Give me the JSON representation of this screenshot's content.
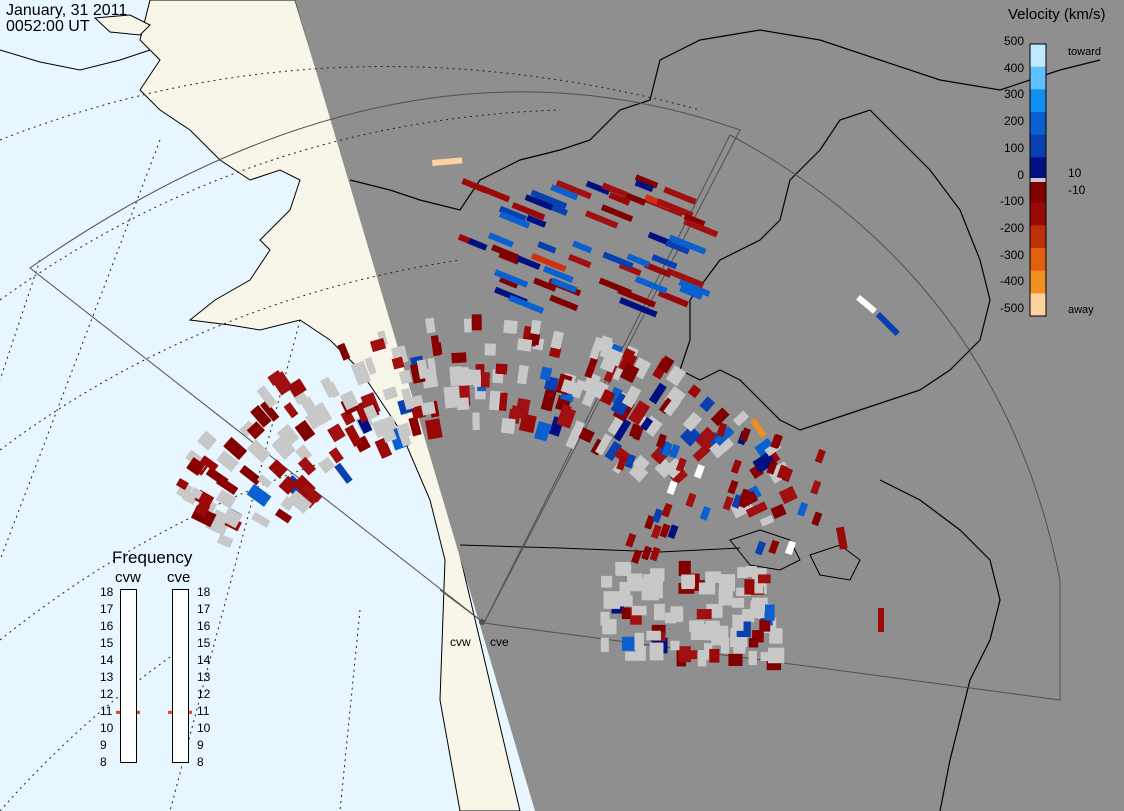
{
  "header": {
    "date": "January, 31 2011",
    "time": "0052:00 UT"
  },
  "colors": {
    "ocean": "#e8f6ff",
    "land_day": "#f7f6e8",
    "night": "#8f8f8f",
    "coast": "#000000",
    "grid": "#404040",
    "frequency_marker": "#e84010",
    "ground_scatter": "#c8c8c8"
  },
  "velocity_scale": {
    "title": "Velocity (km/s)",
    "top_label": "toward",
    "bottom_label": "away",
    "ticks": [
      "500",
      "400",
      "300",
      "200",
      "100",
      "0",
      "-100",
      "-200",
      "-300",
      "-400",
      "-500"
    ],
    "near_zero_labels": [
      "10",
      "-10"
    ],
    "colors": [
      "#c0e8ff",
      "#60c0ff",
      "#1090f0",
      "#0a60d0",
      "#0840b0",
      "#001080",
      "#800000",
      "#9a0808",
      "#c03008",
      "#e06010",
      "#f09020",
      "#ffd0a0"
    ]
  },
  "frequency_panel": {
    "title": "Frequency",
    "radars": [
      {
        "name": "cvw",
        "frequency_mhz": 10.8
      },
      {
        "name": "cve",
        "frequency_mhz": 10.8
      }
    ],
    "ticks": [
      "18",
      "17",
      "16",
      "15",
      "14",
      "13",
      "12",
      "11",
      "10",
      "9",
      "8"
    ]
  },
  "sites": [
    "cvw",
    "cve"
  ]
}
